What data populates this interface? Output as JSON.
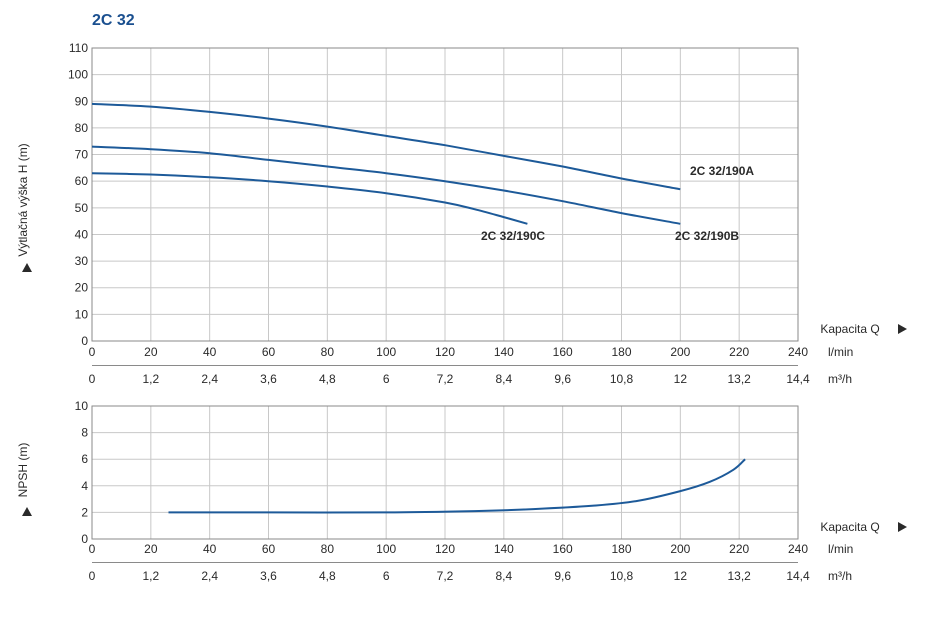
{
  "title": "2C 32",
  "colors": {
    "curve": "#1d5a99",
    "title": "#1a4f8f",
    "grid": "#c8c8c8"
  },
  "chart_data": [
    {
      "type": "line",
      "ylabel": "Výtlačná výška H (m)",
      "xlabel": "Kapacita Q",
      "x_unit_primary": "l/min",
      "x_unit_secondary": "m³/h",
      "xlim": [
        0,
        240
      ],
      "ylim": [
        0,
        110
      ],
      "x_ticks": [
        "0",
        "20",
        "40",
        "60",
        "80",
        "100",
        "120",
        "140",
        "160",
        "180",
        "200",
        "220",
        "240"
      ],
      "x_ticks_secondary": [
        "0",
        "1,2",
        "2,4",
        "3,6",
        "4,8",
        "6",
        "7,2",
        "8,4",
        "9,6",
        "10,8",
        "12",
        "13,2",
        "14,4"
      ],
      "y_ticks": [
        "0",
        "10",
        "20",
        "30",
        "40",
        "50",
        "60",
        "70",
        "80",
        "90",
        "100",
        "110"
      ],
      "grid": true,
      "series": [
        {
          "name": "2C  32/190A",
          "x": [
            0,
            20,
            40,
            60,
            80,
            100,
            120,
            140,
            160,
            180,
            200
          ],
          "y": [
            89,
            88,
            86,
            83.5,
            80.5,
            77,
            73.5,
            69.5,
            65.5,
            61,
            57
          ]
        },
        {
          "name": "2C 32/190B",
          "x": [
            0,
            20,
            40,
            60,
            80,
            100,
            120,
            140,
            160,
            180,
            200
          ],
          "y": [
            73,
            72,
            70.5,
            68,
            65.5,
            63,
            60,
            56.5,
            52.5,
            48,
            44
          ]
        },
        {
          "name": "2C  32/190C",
          "x": [
            0,
            20,
            40,
            60,
            80,
            100,
            120,
            130,
            140,
            148
          ],
          "y": [
            63,
            62.5,
            61.5,
            60,
            58,
            55.5,
            52,
            49.5,
            46.5,
            44
          ]
        }
      ]
    },
    {
      "type": "line",
      "ylabel": "NPSH (m)",
      "xlabel": "Kapacita Q",
      "x_unit_primary": "l/min",
      "x_unit_secondary": "m³/h",
      "xlim": [
        0,
        240
      ],
      "ylim": [
        0,
        10
      ],
      "x_ticks": [
        "0",
        "20",
        "40",
        "60",
        "80",
        "100",
        "120",
        "140",
        "160",
        "180",
        "200",
        "220",
        "240"
      ],
      "x_ticks_secondary": [
        "0",
        "1,2",
        "2,4",
        "3,6",
        "4,8",
        "6",
        "7,2",
        "8,4",
        "9,6",
        "10,8",
        "12",
        "13,2",
        "14,4"
      ],
      "y_ticks": [
        "0",
        "2",
        "4",
        "6",
        "8",
        "10"
      ],
      "grid": true,
      "series": [
        {
          "x": [
            26,
            60,
            100,
            130,
            150,
            170,
            185,
            200,
            210,
            218,
            222
          ],
          "y": [
            2,
            2,
            2,
            2.1,
            2.25,
            2.5,
            2.85,
            3.6,
            4.3,
            5.2,
            6
          ]
        }
      ]
    }
  ]
}
